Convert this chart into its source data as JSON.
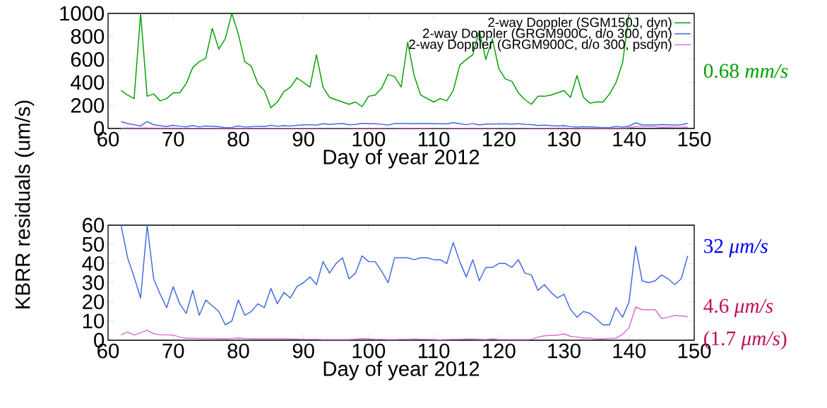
{
  "chart_data": [
    {
      "type": "line",
      "xlabel": "Day of year 2012",
      "ylabel": "KBRR residuals (um/s)",
      "x": [
        62,
        63,
        64,
        65,
        66,
        67,
        68,
        69,
        70,
        71,
        72,
        73,
        74,
        75,
        76,
        77,
        78,
        79,
        80,
        81,
        82,
        83,
        84,
        85,
        86,
        87,
        88,
        89,
        90,
        91,
        92,
        93,
        94,
        95,
        96,
        97,
        98,
        99,
        100,
        101,
        102,
        103,
        104,
        105,
        106,
        107,
        108,
        109,
        110,
        111,
        112,
        113,
        114,
        115,
        116,
        117,
        118,
        119,
        120,
        121,
        122,
        123,
        124,
        125,
        126,
        127,
        128,
        129,
        130,
        131,
        132,
        133,
        134,
        135,
        136,
        137,
        138,
        139,
        140,
        141,
        142,
        143,
        144,
        145,
        146,
        147,
        148,
        149
      ],
      "series": [
        {
          "name": "2-way Doppler (SGM150J, dyn)",
          "color": "#00a000",
          "x": [
            62,
            63,
            64,
            65,
            66,
            67,
            68,
            69,
            70,
            71,
            72,
            73,
            74,
            75,
            76,
            77,
            78,
            79,
            80,
            81,
            82,
            83,
            84,
            85,
            86,
            87,
            88,
            89,
            90,
            91,
            92,
            93,
            94,
            95,
            96,
            97,
            98,
            99,
            100,
            101,
            102,
            103,
            104,
            105,
            106,
            107,
            108,
            109,
            110,
            111,
            112,
            113,
            114,
            115,
            116,
            117,
            118,
            119,
            120,
            121,
            122,
            123,
            124,
            125,
            126,
            127,
            128,
            129,
            130,
            131,
            132,
            133,
            134,
            135,
            136,
            137,
            138,
            139,
            140
          ],
          "values": [
            330,
            290,
            260,
            1000,
            280,
            300,
            240,
            260,
            310,
            310,
            390,
            530,
            580,
            610,
            870,
            690,
            780,
            1000,
            820,
            580,
            540,
            390,
            330,
            180,
            230,
            320,
            360,
            440,
            400,
            360,
            640,
            360,
            270,
            250,
            230,
            210,
            230,
            190,
            280,
            290,
            350,
            470,
            450,
            360,
            750,
            460,
            290,
            260,
            230,
            260,
            240,
            330,
            550,
            600,
            640,
            850,
            600,
            780,
            520,
            430,
            410,
            310,
            250,
            210,
            280,
            280,
            290,
            310,
            330,
            270,
            460,
            270,
            220,
            230,
            230,
            300,
            400,
            570,
            1000
          ]
        },
        {
          "name": "2-way Doppler (GRGM900C, d/o 300, dyn)",
          "color": "#4169e1",
          "values": [
            60,
            43,
            33,
            22,
            60,
            32,
            24,
            17,
            28,
            19,
            14,
            26,
            13,
            21,
            18,
            15,
            8,
            10,
            21,
            13,
            15,
            19,
            17,
            27,
            19,
            25,
            22,
            28,
            30,
            33,
            29,
            41,
            35,
            40,
            43,
            32,
            35,
            44,
            41,
            41,
            36,
            30,
            43,
            43,
            43,
            42,
            43,
            43,
            42,
            42,
            40,
            51,
            41,
            33,
            42,
            31,
            38,
            38,
            40,
            40,
            38,
            42,
            35,
            34,
            26,
            29,
            25,
            22,
            24,
            16,
            12,
            15,
            14,
            11,
            8,
            8,
            17,
            12,
            20,
            49,
            31,
            30,
            31,
            34,
            32,
            29,
            32,
            44
          ]
        },
        {
          "name": "2-way Doppler (GRGM900C, d/o 300, psdyn)",
          "color": "#da70d6",
          "values": [
            3,
            4,
            3,
            4,
            5,
            3,
            3,
            3,
            3,
            2,
            1,
            1,
            1,
            1,
            1,
            1,
            1,
            1,
            1,
            1,
            1,
            1,
            1,
            1,
            1,
            1,
            1,
            1,
            1,
            1,
            1,
            0,
            0,
            0,
            0,
            0,
            1,
            1,
            1,
            1,
            1,
            0,
            0,
            1,
            1,
            1,
            1,
            1,
            0,
            0,
            0,
            1,
            1,
            1,
            1,
            1,
            0,
            1,
            0,
            0,
            0,
            0,
            0,
            1,
            2,
            2,
            3,
            3,
            3,
            2,
            2,
            1,
            1,
            1,
            1,
            1,
            1,
            3,
            7,
            17,
            16,
            16,
            16,
            11,
            12,
            13,
            13,
            12
          ]
        }
      ],
      "xlim": [
        60,
        150
      ],
      "xticks": [
        60,
        70,
        80,
        90,
        100,
        110,
        120,
        130,
        140,
        150
      ],
      "ylim": [
        0,
        1000
      ],
      "yticks": [
        0,
        200,
        400,
        600,
        800,
        1000
      ],
      "legend": "top right",
      "marker": "none",
      "line_style": "solid",
      "grid": false,
      "annotations": [
        "0.68 *mm/s*"
      ]
    },
    {
      "type": "line",
      "xlabel": "Day of year 2012",
      "x": [
        62,
        63,
        64,
        65,
        66,
        67,
        68,
        69,
        70,
        71,
        72,
        73,
        74,
        75,
        76,
        77,
        78,
        79,
        80,
        81,
        82,
        83,
        84,
        85,
        86,
        87,
        88,
        89,
        90,
        91,
        92,
        93,
        94,
        95,
        96,
        97,
        98,
        99,
        100,
        101,
        102,
        103,
        104,
        105,
        106,
        107,
        108,
        109,
        110,
        111,
        112,
        113,
        114,
        115,
        116,
        117,
        118,
        119,
        120,
        121,
        122,
        123,
        124,
        125,
        126,
        127,
        128,
        129,
        130,
        131,
        132,
        133,
        134,
        135,
        136,
        137,
        138,
        139,
        140,
        141,
        142,
        143,
        144,
        145,
        146,
        147,
        148,
        149
      ],
      "series": [
        {
          "color": "#4169e1",
          "values": [
            60,
            43,
            33,
            22,
            60,
            32,
            24,
            17,
            28,
            19,
            14,
            26,
            13,
            21,
            18,
            15,
            8,
            10,
            21,
            13,
            15,
            19,
            17,
            27,
            19,
            25,
            22,
            28,
            30,
            33,
            29,
            41,
            35,
            40,
            43,
            32,
            35,
            44,
            41,
            41,
            36,
            30,
            43,
            43,
            43,
            42,
            43,
            43,
            42,
            42,
            40,
            51,
            41,
            33,
            42,
            31,
            38,
            38,
            40,
            40,
            38,
            42,
            35,
            34,
            26,
            29,
            25,
            22,
            24,
            16,
            12,
            15,
            14,
            11,
            8,
            8,
            17,
            12,
            20,
            49,
            31,
            30,
            31,
            34,
            32,
            29,
            32,
            44
          ]
        },
        {
          "color": "#da70d6",
          "values": [
            2.8,
            4.3,
            2.7,
            3.9,
            5.2,
            3.4,
            2.8,
            2.8,
            2.7,
            1.6,
            1.0,
            1.0,
            0.9,
            0.9,
            0.9,
            0.8,
            0.7,
            0.9,
            1.2,
            0.9,
            0.8,
            0.7,
            0.7,
            0.7,
            0.7,
            0.7,
            0.6,
            0.6,
            0.5,
            0.5,
            0.5,
            0.4,
            0.4,
            0.4,
            0.4,
            0.4,
            0.6,
            0.8,
            0.7,
            0.5,
            0.5,
            0.4,
            0.4,
            0.5,
            0.5,
            0.6,
            0.5,
            0.5,
            0.4,
            0.3,
            0.4,
            0.5,
            0.5,
            0.6,
            0.6,
            0.5,
            0.4,
            0.7,
            0.4,
            0.4,
            0.4,
            0.4,
            0.4,
            0.5,
            1.6,
            2.3,
            2.6,
            2.6,
            3.3,
            2.0,
            1.7,
            1.1,
            1.1,
            0.6,
            0.6,
            0.9,
            1.1,
            3.1,
            6.5,
            17.3,
            15.9,
            15.9,
            15.9,
            11.3,
            12.0,
            12.9,
            12.7,
            12.2
          ]
        }
      ],
      "xlim": [
        60,
        150
      ],
      "xticks": [
        60,
        70,
        80,
        90,
        100,
        110,
        120,
        130,
        140,
        150
      ],
      "ylim": [
        0,
        60
      ],
      "yticks": [
        0,
        10,
        20,
        30,
        40,
        50,
        60
      ],
      "legend": false,
      "marker": "none",
      "line_style": "solid",
      "grid": false,
      "annotations": [
        "32 *μm/s*",
        "4.6 *μm/s*",
        "(1.7 *μm/s*)"
      ]
    }
  ]
}
